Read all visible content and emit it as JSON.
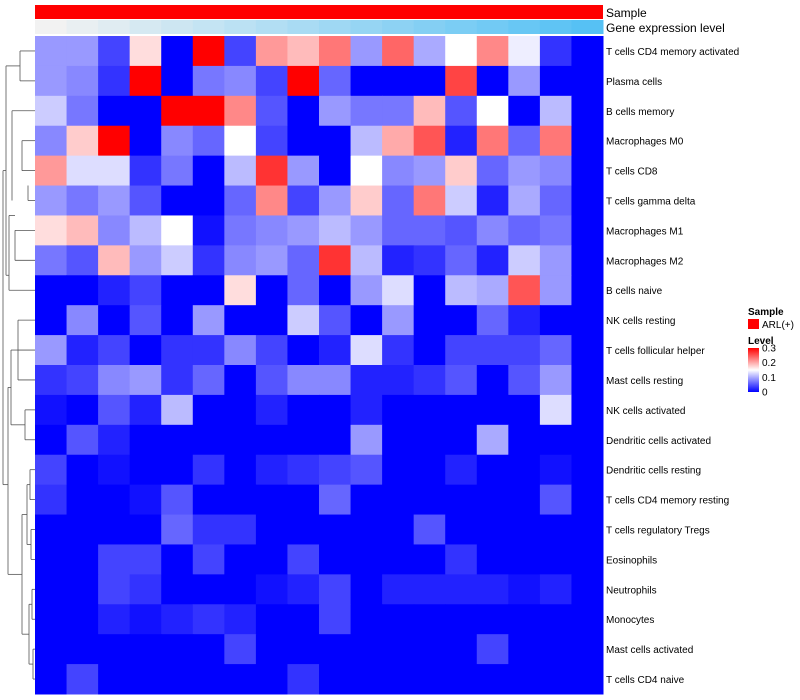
{
  "chart_data": {
    "type": "heatmap",
    "annotations": {
      "sample_label": "Sample",
      "expression_label": "Gene expression level",
      "sample_color": "#ff0000",
      "expression_colors_from": "#f2f2f2",
      "expression_colors_to": "#56c1f4"
    },
    "rows": [
      "T cells CD4 memory activated",
      "Plasma cells",
      "B cells memory",
      "Macrophages M0",
      "T cells CD8",
      "T cells gamma delta",
      "Macrophages M1",
      "Macrophages M2",
      "B cells naive",
      "NK cells resting",
      "T cells follicular helper",
      "Mast cells resting",
      "NK cells activated",
      "Dendritic cells activated",
      "Dendritic cells resting",
      "T cells CD4 memory resting",
      "T cells regulatory  Tregs",
      "Eosinophils",
      "Neutrophils",
      "Monocytes",
      "Mast cells activated",
      "T cells CD4 naive"
    ],
    "n_columns": 18,
    "values": [
      [
        0.09,
        0.09,
        0.04,
        0.17,
        0.0,
        0.3,
        0.04,
        0.21,
        0.19,
        0.23,
        0.09,
        0.24,
        0.1,
        0.15,
        0.22,
        0.14,
        0.03,
        null
      ],
      [
        0.09,
        0.08,
        0.03,
        0.3,
        0.0,
        0.07,
        0.08,
        0.04,
        0.3,
        0.06,
        0.0,
        0.0,
        0.0,
        0.26,
        0.0,
        0.09,
        0.0,
        null
      ],
      [
        0.12,
        0.07,
        0.0,
        0.0,
        0.3,
        0.3,
        0.22,
        0.05,
        0.0,
        0.09,
        0.07,
        0.07,
        0.19,
        0.05,
        0.15,
        0.0,
        0.11,
        null
      ],
      [
        0.08,
        0.18,
        0.3,
        0.0,
        0.08,
        0.06,
        0.15,
        0.04,
        0.0,
        0.0,
        0.11,
        0.2,
        0.25,
        0.02,
        0.23,
        0.06,
        0.23,
        null
      ],
      [
        0.21,
        0.13,
        0.13,
        0.03,
        0.07,
        0.0,
        0.11,
        0.27,
        0.09,
        0.0,
        0.15,
        0.08,
        0.09,
        0.18,
        0.06,
        0.09,
        0.08,
        null
      ],
      [
        0.09,
        0.07,
        0.09,
        0.05,
        0.0,
        0.0,
        0.06,
        0.22,
        0.04,
        0.09,
        0.18,
        0.06,
        0.23,
        0.12,
        0.02,
        0.1,
        0.06,
        null
      ],
      [
        0.17,
        0.19,
        0.08,
        0.11,
        0.15,
        0.01,
        0.07,
        0.08,
        0.09,
        0.11,
        0.09,
        0.06,
        0.06,
        0.05,
        0.08,
        0.06,
        0.07,
        null
      ],
      [
        0.07,
        0.05,
        0.19,
        0.09,
        0.12,
        0.03,
        0.08,
        0.09,
        0.06,
        0.27,
        0.11,
        0.02,
        0.03,
        0.06,
        0.02,
        0.12,
        0.09,
        null
      ],
      [
        0.0,
        0.0,
        0.02,
        0.04,
        0.0,
        0.0,
        0.17,
        0.0,
        0.06,
        0.0,
        0.09,
        0.13,
        0.0,
        0.11,
        0.1,
        0.25,
        0.09,
        null
      ],
      [
        0.0,
        0.08,
        0.0,
        0.05,
        0.0,
        0.09,
        0.0,
        0.0,
        0.12,
        0.05,
        0.0,
        0.09,
        0.0,
        0.0,
        0.06,
        0.02,
        0.0,
        null
      ],
      [
        0.09,
        0.02,
        0.04,
        0.0,
        0.03,
        0.03,
        0.08,
        0.04,
        0.0,
        0.02,
        0.13,
        0.03,
        0.0,
        0.04,
        0.04,
        0.04,
        0.06,
        null
      ],
      [
        0.03,
        0.04,
        0.08,
        0.09,
        0.03,
        0.06,
        0.0,
        0.05,
        0.08,
        0.08,
        0.02,
        0.02,
        0.03,
        0.05,
        0.0,
        0.05,
        0.09,
        null
      ],
      [
        0.01,
        0.0,
        0.05,
        0.02,
        0.11,
        0.0,
        0.0,
        0.02,
        0.0,
        0.0,
        0.02,
        0.0,
        0.0,
        0.0,
        0.0,
        0.0,
        0.13,
        null
      ],
      [
        0.0,
        0.05,
        0.02,
        0.0,
        0.0,
        0.0,
        0.0,
        0.0,
        0.0,
        0.0,
        0.09,
        0.0,
        0.0,
        0.0,
        0.1,
        0.0,
        0.0,
        null
      ],
      [
        0.04,
        0.0,
        0.01,
        0.0,
        0.0,
        0.03,
        0.0,
        0.02,
        0.03,
        0.04,
        0.05,
        0.0,
        0.0,
        0.02,
        0.0,
        0.0,
        0.01,
        null
      ],
      [
        0.03,
        0.0,
        0.0,
        0.01,
        0.05,
        0.0,
        0.0,
        0.0,
        0.0,
        0.06,
        0.0,
        0.0,
        0.0,
        0.0,
        0.0,
        0.0,
        0.05,
        null
      ],
      [
        0.0,
        0.0,
        0.0,
        0.0,
        0.06,
        0.03,
        0.03,
        0.0,
        0.0,
        0.0,
        0.0,
        0.0,
        0.05,
        0.0,
        0.0,
        0.0,
        0.0,
        null
      ],
      [
        0.0,
        0.0,
        0.04,
        0.04,
        0.0,
        0.04,
        0.0,
        0.0,
        0.04,
        0.0,
        0.0,
        0.0,
        0.0,
        0.03,
        0.0,
        0.0,
        0.0,
        null
      ],
      [
        0.0,
        0.0,
        0.04,
        0.03,
        0.0,
        0.0,
        0.0,
        0.01,
        0.02,
        0.04,
        0.0,
        0.02,
        0.02,
        0.02,
        0.02,
        0.01,
        0.02,
        null
      ],
      [
        0.0,
        0.0,
        0.02,
        0.01,
        0.02,
        0.03,
        0.02,
        0.0,
        0.0,
        0.04,
        0.0,
        0.0,
        0.0,
        0.0,
        0.0,
        0.0,
        0.0,
        null
      ],
      [
        0.0,
        0.0,
        0.0,
        0.0,
        0.0,
        0.0,
        0.04,
        0.0,
        0.0,
        0.0,
        0.0,
        0.0,
        0.0,
        0.0,
        0.04,
        0.0,
        0.0,
        null
      ],
      [
        0.0,
        0.04,
        0.0,
        0.0,
        0.0,
        0.0,
        0.0,
        0.0,
        0.03,
        0.0,
        0.0,
        0.0,
        0.0,
        0.0,
        0.0,
        0.0,
        0.0,
        null
      ]
    ],
    "legend": {
      "sample_title": "Sample",
      "sample_item": "ARL(+)",
      "level_title": "Level",
      "level_ticks": [
        "0.3",
        "0.2",
        "0.1",
        "0"
      ],
      "level_tick_values": [
        0.3,
        0.2,
        0.1,
        0
      ],
      "scale_min": 0,
      "scale_max": 0.3,
      "color_low": "#0000ff",
      "color_mid": "#ffffff",
      "color_high": "#ff0000"
    }
  }
}
